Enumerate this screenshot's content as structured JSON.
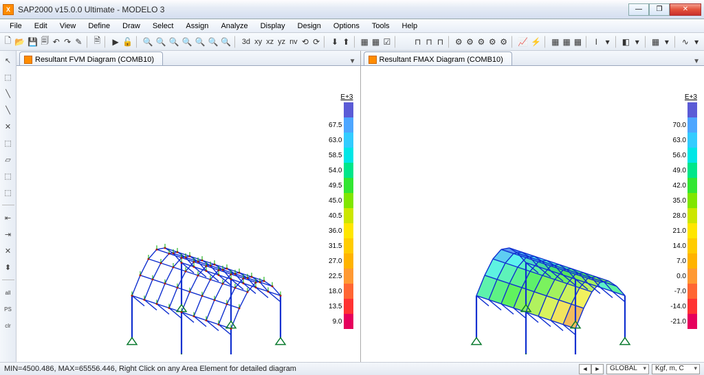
{
  "window": {
    "title": "SAP2000 v15.0.0 Ultimate  -  MODELO 3",
    "min_icon": "—",
    "max_icon": "❐",
    "close_icon": "✕"
  },
  "menu": [
    "File",
    "Edit",
    "View",
    "Define",
    "Draw",
    "Select",
    "Assign",
    "Analyze",
    "Display",
    "Design",
    "Options",
    "Tools",
    "Help"
  ],
  "toolbar_icons": [
    "🗋",
    "📂",
    "💾",
    "🗐",
    "↶",
    "↷",
    "✎",
    "|",
    "🗎",
    "|",
    "▶",
    "🔓",
    "|",
    "🔍",
    "🔍",
    "🔍",
    "🔍",
    "🔍",
    "🔍",
    "🔍",
    "|",
    "3d",
    "xy",
    "xz",
    "yz",
    "nv",
    "⟲",
    "⟳",
    "|",
    "⬇",
    "⬆",
    "|",
    "▦",
    "▦",
    "☑",
    "|"
  ],
  "toolbar2_icons": [
    "⊓",
    "⊓",
    "⊓",
    "|",
    "⚙",
    "⚙",
    "⚙",
    "⚙",
    "⚙",
    "|",
    "📈",
    "⚡",
    "|",
    "▦",
    "▦",
    "▦",
    "|",
    "I",
    "▾",
    "|",
    "◧",
    "▾",
    "|",
    "▦",
    "▾",
    "|",
    "∿",
    "▾"
  ],
  "lefttools": [
    "↖",
    "⬚",
    "╲",
    "╲",
    "✕",
    "⬚",
    "▱",
    "⬚",
    "⬚",
    "—",
    "⇤",
    "⇥",
    "✕",
    "⬍",
    "—",
    "all",
    "PS",
    "clr"
  ],
  "viewports": [
    {
      "tab_label": "Resultant FVM Diagram   (COMB10)",
      "legend_exp": "E+3",
      "legend": [
        {
          "v": "",
          "c": "#5b5bd6"
        },
        {
          "v": "67.5",
          "c": "#4da6ff"
        },
        {
          "v": "63.0",
          "c": "#33ccff"
        },
        {
          "v": "58.5",
          "c": "#00e6e6"
        },
        {
          "v": "54.0",
          "c": "#00e68a"
        },
        {
          "v": "49.5",
          "c": "#33e633"
        },
        {
          "v": "45.0",
          "c": "#80e600"
        },
        {
          "v": "40.5",
          "c": "#cce600"
        },
        {
          "v": "36.0",
          "c": "#ffe600"
        },
        {
          "v": "31.5",
          "c": "#ffcc00"
        },
        {
          "v": "27.0",
          "c": "#ffb300"
        },
        {
          "v": "22.5",
          "c": "#ff9933"
        },
        {
          "v": "18.0",
          "c": "#ff6633"
        },
        {
          "v": "13.5",
          "c": "#ff3333"
        },
        {
          "v": "9.0",
          "c": "#e6005c"
        }
      ]
    },
    {
      "tab_label": "Resultant FMAX Diagram   (COMB10)",
      "legend_exp": "E+3",
      "legend": [
        {
          "v": "",
          "c": "#5b5bd6"
        },
        {
          "v": "70.0",
          "c": "#4da6ff"
        },
        {
          "v": "63.0",
          "c": "#33ccff"
        },
        {
          "v": "56.0",
          "c": "#00e6e6"
        },
        {
          "v": "49.0",
          "c": "#00e68a"
        },
        {
          "v": "42.0",
          "c": "#33e633"
        },
        {
          "v": "35.0",
          "c": "#80e600"
        },
        {
          "v": "28.0",
          "c": "#cce600"
        },
        {
          "v": "21.0",
          "c": "#ffe600"
        },
        {
          "v": "14.0",
          "c": "#ffcc00"
        },
        {
          "v": "7.0",
          "c": "#ffb300"
        },
        {
          "v": "0.0",
          "c": "#ff9933"
        },
        {
          "v": "-7.0",
          "c": "#ff6633"
        },
        {
          "v": "-14.0",
          "c": "#ff3333"
        },
        {
          "v": "-21.0",
          "c": "#e6005c"
        }
      ]
    }
  ],
  "status": {
    "left": "MIN=4500.486, MAX=65556.446, Right Click on any Area Element for detailed diagram",
    "coord_sys": "GLOBAL",
    "units": "Kgf, m, C"
  },
  "structure": {
    "frame_color": "#1030d0",
    "support_color": "#0a7a2e",
    "bg": "#ffffff"
  }
}
